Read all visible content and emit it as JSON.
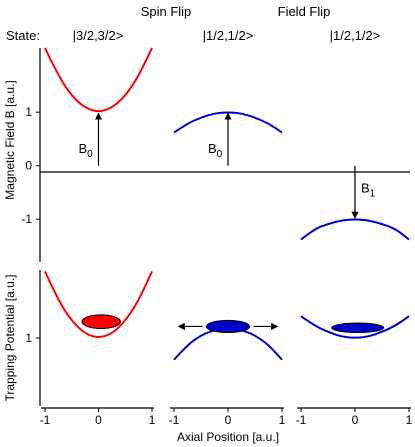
{
  "header": {
    "state_label": "State:",
    "transition_labels": [
      "Spin Flip",
      "Field Flip"
    ]
  },
  "colors": {
    "red": "#ff0000",
    "blue": "#0000cc",
    "axis": "#000000"
  },
  "chart_data": [
    {
      "type": "line",
      "ylabel": "Magnetic Field B [a.u.]",
      "ylim": [
        -1.8,
        2.2
      ],
      "yticks": [
        1,
        0,
        -1
      ],
      "zero_line": true,
      "panels": [
        {
          "state": "|3/2,3/2>",
          "color": "#ff0000",
          "x": [
            -1.0,
            -0.75,
            -0.5,
            -0.25,
            0.0,
            0.25,
            0.5,
            0.75,
            1.0
          ],
          "y": [
            2.2,
            1.68,
            1.3,
            1.08,
            1.0,
            1.08,
            1.3,
            1.68,
            2.2
          ],
          "arrow": {
            "label_main": "B",
            "label_sub": "0",
            "x": 0,
            "from": 0,
            "to": 1
          }
        },
        {
          "state": "|1/2,1/2>",
          "color": "#0000cc",
          "x": [
            -1.0,
            -0.75,
            -0.5,
            -0.25,
            0.0,
            0.25,
            0.5,
            0.75,
            1.0
          ],
          "y": [
            0.62,
            0.79,
            0.9,
            0.98,
            1.0,
            0.98,
            0.9,
            0.79,
            0.62
          ],
          "arrow": {
            "label_main": "B",
            "label_sub": "0",
            "x": 0,
            "from": 0,
            "to": 1
          }
        },
        {
          "state": "|1/2,1/2>",
          "color": "#0000cc",
          "x": [
            -1.0,
            -0.75,
            -0.5,
            -0.25,
            0.0,
            0.25,
            0.5,
            0.75,
            1.0
          ],
          "y": [
            -1.38,
            -1.18,
            -1.09,
            -1.02,
            -1.0,
            -1.02,
            -1.09,
            -1.18,
            -1.38
          ],
          "arrow": {
            "label_main": "B",
            "label_sub": "1",
            "x": 0,
            "from": 0,
            "to": -1
          }
        }
      ]
    },
    {
      "type": "line",
      "xlabel": "Axial Position [a.u.]",
      "ylabel": "Trapping Potential [a.u.]",
      "ylim": [
        0.0,
        2.0
      ],
      "yticks": [
        1
      ],
      "xlim": [
        -1,
        1
      ],
      "xticks": [
        -1,
        0,
        1
      ],
      "panels": [
        {
          "color": "#ff0000",
          "x": [
            -1.0,
            -0.75,
            -0.5,
            -0.25,
            0.0,
            0.25,
            0.5,
            0.75,
            1.0
          ],
          "y": [
            1.98,
            1.55,
            1.25,
            1.06,
            1.0,
            1.06,
            1.25,
            1.55,
            1.98
          ],
          "cloud": {
            "x": 0.05,
            "y": 1.24,
            "rx": 0.36,
            "ry": 0.1
          }
        },
        {
          "color": "#0000cc",
          "x": [
            -1.0,
            -0.75,
            -0.5,
            -0.25,
            0.0,
            0.25,
            0.5,
            0.75,
            1.0
          ],
          "y": [
            0.68,
            0.9,
            1.04,
            1.12,
            1.15,
            1.12,
            1.04,
            0.9,
            0.68
          ],
          "cloud": {
            "x": 0.0,
            "y": 1.17,
            "rx": 0.4,
            "ry": 0.09
          },
          "escape_arrows": true
        },
        {
          "color": "#0000cc",
          "x": [
            -1.0,
            -0.75,
            -0.5,
            -0.25,
            0.0,
            0.25,
            0.5,
            0.75,
            1.0
          ],
          "y": [
            1.32,
            1.18,
            1.09,
            1.02,
            1.0,
            1.02,
            1.09,
            1.18,
            1.32
          ],
          "cloud": {
            "x": 0.05,
            "y": 1.15,
            "rx": 0.48,
            "ry": 0.07
          }
        }
      ]
    }
  ]
}
